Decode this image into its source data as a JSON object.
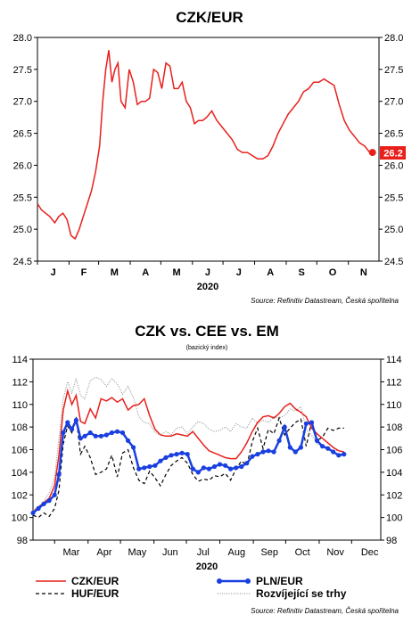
{
  "chart_data": [
    {
      "type": "line",
      "title": "CZK/EUR",
      "year_label": "2020",
      "source": "Source: Refinitiv Datastream, Česká spořitelna",
      "ylim": [
        24.5,
        28.0
      ],
      "y_ticks": [
        "28.0",
        "27.5",
        "27.0",
        "26.5",
        "26.0",
        "25.5",
        "25.0",
        "24.5"
      ],
      "y_tick_values": [
        28.0,
        27.5,
        27.0,
        26.5,
        26.0,
        25.5,
        25.0,
        24.5
      ],
      "x_ticks": [
        "J",
        "F",
        "M",
        "A",
        "M",
        "J",
        "J",
        "A",
        "S",
        "O",
        "N"
      ],
      "last_value_label": "26.2",
      "colors": {
        "line": "#e8201c",
        "badge": "#e8201c"
      },
      "series": [
        {
          "x": [
            "2020-01-01",
            "2020-01-05",
            "2020-01-09",
            "2020-01-13",
            "2020-01-18",
            "2020-01-22",
            "2020-01-26",
            "2020-01-30",
            "2020-02-03",
            "2020-02-07",
            "2020-02-11",
            "2020-02-15",
            "2020-02-19",
            "2020-02-23",
            "2020-02-27",
            "2020-03-02",
            "2020-03-05",
            "2020-03-08",
            "2020-03-11",
            "2020-03-14",
            "2020-03-17",
            "2020-03-20",
            "2020-03-23",
            "2020-03-27",
            "2020-03-31",
            "2020-04-04",
            "2020-04-08",
            "2020-04-12",
            "2020-04-16",
            "2020-04-20",
            "2020-04-24",
            "2020-04-28",
            "2020-05-02",
            "2020-05-06",
            "2020-05-10",
            "2020-05-14",
            "2020-05-18",
            "2020-05-22",
            "2020-05-26",
            "2020-05-30",
            "2020-06-03",
            "2020-06-07",
            "2020-06-11",
            "2020-06-15",
            "2020-06-20",
            "2020-06-25",
            "2020-06-30",
            "2020-07-05",
            "2020-07-10",
            "2020-07-15",
            "2020-07-20",
            "2020-07-25",
            "2020-07-30",
            "2020-08-04",
            "2020-08-09",
            "2020-08-14",
            "2020-08-19",
            "2020-08-24",
            "2020-08-29",
            "2020-09-03",
            "2020-09-08",
            "2020-09-13",
            "2020-09-18",
            "2020-09-23",
            "2020-09-28",
            "2020-10-03",
            "2020-10-08",
            "2020-10-13",
            "2020-10-18",
            "2020-10-23",
            "2020-10-28",
            "2020-11-02",
            "2020-11-07",
            "2020-11-12",
            "2020-11-17",
            "2020-11-22"
          ],
          "values": [
            25.4,
            25.3,
            25.25,
            25.2,
            25.1,
            25.2,
            25.25,
            25.15,
            24.9,
            24.85,
            25.0,
            25.2,
            25.4,
            25.6,
            25.9,
            26.3,
            27.0,
            27.5,
            27.8,
            27.3,
            27.5,
            27.6,
            27.0,
            26.9,
            27.5,
            27.3,
            26.95,
            27.0,
            27.0,
            27.05,
            27.5,
            27.45,
            27.2,
            27.6,
            27.55,
            27.2,
            27.2,
            27.3,
            27.0,
            26.9,
            26.65,
            26.7,
            26.7,
            26.75,
            26.85,
            26.7,
            26.6,
            26.5,
            26.4,
            26.25,
            26.2,
            26.2,
            26.15,
            26.1,
            26.1,
            26.15,
            26.3,
            26.5,
            26.65,
            26.8,
            26.9,
            27.0,
            27.15,
            27.2,
            27.3,
            27.3,
            27.35,
            27.3,
            27.25,
            26.95,
            26.7,
            26.55,
            26.45,
            26.35,
            26.3,
            26.2
          ]
        }
      ]
    },
    {
      "type": "line",
      "title": "CZK vs. CEE vs. EM",
      "subtitle": "(bazický index)",
      "year_label": "2020",
      "source": "Source: Refinitiv Datastream, Česká spořitelna",
      "ylim": [
        98,
        114
      ],
      "y_ticks": [
        "114",
        "112",
        "110",
        "108",
        "106",
        "104",
        "102",
        "100",
        "98"
      ],
      "y_tick_values": [
        114,
        112,
        110,
        108,
        106,
        104,
        102,
        100,
        98
      ],
      "x_ticks": [
        "Mar",
        "Apr",
        "May",
        "Jun",
        "Jul",
        "Aug",
        "Sep",
        "Oct",
        "Nov",
        "Dec"
      ],
      "series": [
        {
          "name": "CZK/EUR",
          "color": "#e8201c",
          "style": "solid",
          "x": [
            "2020-02-10",
            "2020-02-15",
            "2020-02-20",
            "2020-02-25",
            "2020-03-01",
            "2020-03-05",
            "2020-03-09",
            "2020-03-13",
            "2020-03-17",
            "2020-03-21",
            "2020-03-25",
            "2020-03-29",
            "2020-04-03",
            "2020-04-08",
            "2020-04-13",
            "2020-04-18",
            "2020-04-23",
            "2020-04-28",
            "2020-05-03",
            "2020-05-08",
            "2020-05-13",
            "2020-05-18",
            "2020-05-23",
            "2020-05-28",
            "2020-06-02",
            "2020-06-07",
            "2020-06-12",
            "2020-06-17",
            "2020-06-22",
            "2020-06-27",
            "2020-07-02",
            "2020-07-07",
            "2020-07-12",
            "2020-07-17",
            "2020-07-22",
            "2020-07-27",
            "2020-08-01",
            "2020-08-06",
            "2020-08-11",
            "2020-08-16",
            "2020-08-21",
            "2020-08-26",
            "2020-08-31",
            "2020-09-05",
            "2020-09-10",
            "2020-09-15",
            "2020-09-20",
            "2020-09-25",
            "2020-09-30",
            "2020-10-05",
            "2020-10-10",
            "2020-10-15",
            "2020-10-20",
            "2020-10-25",
            "2020-10-30",
            "2020-11-04",
            "2020-11-09",
            "2020-11-14",
            "2020-11-19",
            "2020-11-24"
          ],
          "values": [
            100.5,
            100.9,
            101.3,
            101.7,
            102.8,
            105.5,
            109.5,
            111.2,
            110.0,
            110.8,
            108.5,
            108.3,
            109.6,
            108.8,
            110.5,
            110.3,
            110.6,
            110.2,
            110.5,
            109.5,
            109.9,
            110.0,
            110.5,
            109.0,
            107.8,
            107.3,
            107.2,
            107.2,
            107.4,
            107.3,
            107.2,
            107.6,
            107.0,
            106.4,
            105.9,
            105.7,
            105.5,
            105.3,
            105.2,
            105.2,
            105.8,
            106.6,
            107.6,
            108.4,
            108.9,
            109.0,
            108.8,
            109.2,
            109.8,
            110.1,
            109.6,
            109.3,
            108.9,
            107.9,
            107.4,
            107.0,
            106.6,
            106.2,
            105.9,
            105.8
          ]
        },
        {
          "name": "PLN/EUR",
          "color": "#1a3fe0",
          "style": "solid-markers",
          "x": [
            "2020-02-10",
            "2020-02-15",
            "2020-02-20",
            "2020-02-25",
            "2020-03-01",
            "2020-03-05",
            "2020-03-09",
            "2020-03-13",
            "2020-03-17",
            "2020-03-21",
            "2020-03-25",
            "2020-03-29",
            "2020-04-03",
            "2020-04-08",
            "2020-04-13",
            "2020-04-18",
            "2020-04-23",
            "2020-04-28",
            "2020-05-03",
            "2020-05-08",
            "2020-05-13",
            "2020-05-18",
            "2020-05-23",
            "2020-05-28",
            "2020-06-02",
            "2020-06-07",
            "2020-06-12",
            "2020-06-17",
            "2020-06-22",
            "2020-06-27",
            "2020-07-02",
            "2020-07-07",
            "2020-07-12",
            "2020-07-17",
            "2020-07-22",
            "2020-07-27",
            "2020-08-01",
            "2020-08-06",
            "2020-08-11",
            "2020-08-16",
            "2020-08-21",
            "2020-08-26",
            "2020-08-31",
            "2020-09-05",
            "2020-09-10",
            "2020-09-15",
            "2020-09-20",
            "2020-09-25",
            "2020-09-30",
            "2020-10-05",
            "2020-10-10",
            "2020-10-15",
            "2020-10-20",
            "2020-10-25",
            "2020-10-30",
            "2020-11-04",
            "2020-11-09",
            "2020-11-14",
            "2020-11-19",
            "2020-11-24"
          ],
          "values": [
            100.4,
            100.8,
            101.2,
            101.5,
            102.0,
            103.8,
            107.5,
            108.4,
            107.8,
            108.6,
            107.0,
            107.2,
            107.5,
            107.2,
            107.2,
            107.3,
            107.5,
            107.6,
            107.5,
            106.8,
            106.2,
            104.3,
            104.4,
            104.5,
            104.6,
            105.0,
            105.3,
            105.5,
            105.6,
            105.7,
            105.6,
            104.3,
            104.0,
            104.4,
            104.3,
            104.5,
            104.7,
            104.6,
            104.3,
            104.4,
            104.5,
            104.8,
            105.4,
            105.6,
            105.8,
            105.9,
            105.8,
            106.8,
            108.0,
            106.2,
            105.8,
            106.2,
            108.3,
            108.4,
            106.8,
            106.3,
            106.1,
            105.8,
            105.5,
            105.6
          ]
        },
        {
          "name": "HUF/EUR",
          "color": "#000000",
          "style": "dashed",
          "x": [
            "2020-02-10",
            "2020-02-15",
            "2020-02-20",
            "2020-02-25",
            "2020-03-01",
            "2020-03-05",
            "2020-03-09",
            "2020-03-13",
            "2020-03-17",
            "2020-03-21",
            "2020-03-25",
            "2020-03-29",
            "2020-04-03",
            "2020-04-08",
            "2020-04-13",
            "2020-04-18",
            "2020-04-23",
            "2020-04-28",
            "2020-05-03",
            "2020-05-08",
            "2020-05-13",
            "2020-05-18",
            "2020-05-23",
            "2020-05-28",
            "2020-06-02",
            "2020-06-07",
            "2020-06-12",
            "2020-06-17",
            "2020-06-22",
            "2020-06-27",
            "2020-07-02",
            "2020-07-07",
            "2020-07-12",
            "2020-07-17",
            "2020-07-22",
            "2020-07-27",
            "2020-08-01",
            "2020-08-06",
            "2020-08-11",
            "2020-08-16",
            "2020-08-21",
            "2020-08-26",
            "2020-08-31",
            "2020-09-05",
            "2020-09-10",
            "2020-09-15",
            "2020-09-20",
            "2020-09-25",
            "2020-09-30",
            "2020-10-05",
            "2020-10-10",
            "2020-10-15",
            "2020-10-20",
            "2020-10-25",
            "2020-10-30",
            "2020-11-04",
            "2020-11-09",
            "2020-11-14",
            "2020-11-19",
            "2020-11-24"
          ],
          "values": [
            100.2,
            100.0,
            100.4,
            100.1,
            100.8,
            102.4,
            106.5,
            108.1,
            107.5,
            108.9,
            105.6,
            106.3,
            105.3,
            103.8,
            104.0,
            104.3,
            105.5,
            103.6,
            105.7,
            106.0,
            104.4,
            103.3,
            103.0,
            104.1,
            103.5,
            102.8,
            103.8,
            104.6,
            105.0,
            105.3,
            104.8,
            103.8,
            103.2,
            103.4,
            103.3,
            103.7,
            103.6,
            103.9,
            103.3,
            104.3,
            105.0,
            104.6,
            106.7,
            107.9,
            106.1,
            107.8,
            107.4,
            108.8,
            107.3,
            107.9,
            108.4,
            108.7,
            106.3,
            108.5,
            106.8,
            107.1,
            107.9,
            107.7,
            107.9,
            107.9
          ]
        },
        {
          "name": "Rozvíjející se trhy",
          "color": "#888888",
          "style": "dotted",
          "x": [
            "2020-02-10",
            "2020-02-15",
            "2020-02-20",
            "2020-02-25",
            "2020-03-01",
            "2020-03-05",
            "2020-03-09",
            "2020-03-13",
            "2020-03-17",
            "2020-03-21",
            "2020-03-25",
            "2020-03-29",
            "2020-04-03",
            "2020-04-08",
            "2020-04-13",
            "2020-04-18",
            "2020-04-23",
            "2020-04-28",
            "2020-05-03",
            "2020-05-08",
            "2020-05-13",
            "2020-05-18",
            "2020-05-23",
            "2020-05-28",
            "2020-06-02",
            "2020-06-07",
            "2020-06-12",
            "2020-06-17",
            "2020-06-22",
            "2020-06-27",
            "2020-07-02",
            "2020-07-07",
            "2020-07-12",
            "2020-07-17",
            "2020-07-22",
            "2020-07-27",
            "2020-08-01",
            "2020-08-06",
            "2020-08-11",
            "2020-08-16",
            "2020-08-21",
            "2020-08-26",
            "2020-08-31",
            "2020-09-05",
            "2020-09-10",
            "2020-09-15",
            "2020-09-20",
            "2020-09-25",
            "2020-09-30",
            "2020-10-05",
            "2020-10-10",
            "2020-10-15",
            "2020-10-20",
            "2020-10-25",
            "2020-10-30",
            "2020-11-04",
            "2020-11-09",
            "2020-11-14",
            "2020-11-19",
            "2020-11-24"
          ],
          "values": [
            100.6,
            101.0,
            101.4,
            102.2,
            103.5,
            107.0,
            110.5,
            112.0,
            111.0,
            112.3,
            110.8,
            110.5,
            112.1,
            112.4,
            112.2,
            111.6,
            112.3,
            111.8,
            110.9,
            111.6,
            110.6,
            108.9,
            108.4,
            108.3,
            107.5,
            107.3,
            107.6,
            107.3,
            107.9,
            108.0,
            107.4,
            108.0,
            108.5,
            108.3,
            107.8,
            107.6,
            107.7,
            108.0,
            107.6,
            108.3,
            108.0,
            107.9,
            108.8,
            108.3,
            108.6,
            108.4,
            108.9,
            108.8,
            109.0,
            109.6,
            109.4,
            109.8,
            107.8,
            107.3,
            106.5,
            106.3,
            106.2,
            105.9,
            105.9,
            105.8
          ]
        }
      ]
    }
  ]
}
